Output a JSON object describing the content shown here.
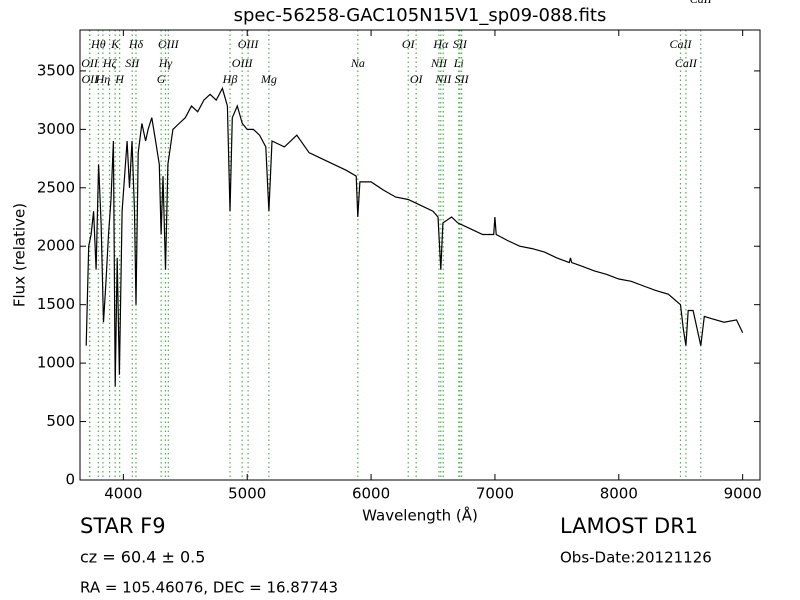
{
  "chart_data": {
    "type": "line",
    "title": "spec-56258-GAC105N15V1_sp09-088.fits",
    "x_label": "Wavelength (Å)",
    "y_label": "Flux (relative)",
    "annotations": [
      "STAR   F9",
      "cz = 60.4 ± 0.5",
      "RA = 105.46076, DEC = 16.87743",
      "LAMOST DR1",
      "Obs-Date:20121126"
    ],
    "xlim": [
      3650,
      9140
    ],
    "ylim": [
      0,
      3850
    ],
    "xticks": [
      4000,
      5000,
      6000,
      7000,
      8000,
      9000
    ],
    "yticks": [
      0,
      500,
      1000,
      1500,
      2000,
      2500,
      3000,
      3500
    ],
    "grid": false,
    "color": "#000000",
    "line_color": "#55aa55",
    "lines": [
      {
        "label": "Hθ",
        "wavelength": 3798
      },
      {
        "label": "K",
        "wavelength": 3934
      },
      {
        "label": "Hδ",
        "wavelength": 4102
      },
      {
        "label": "OIII",
        "wavelength": 4363
      },
      {
        "label": "OIII",
        "wavelength": 5007
      },
      {
        "label": "OI",
        "wavelength": 6300
      },
      {
        "label": "Hα",
        "wavelength": 6563
      },
      {
        "label": "SII",
        "wavelength": 6717
      },
      {
        "label": "CaII",
        "wavelength": 8498
      },
      {
        "label": "OII",
        "wavelength": 3727
      },
      {
        "label": "Hζ",
        "wavelength": 3889
      },
      {
        "label": "SII",
        "wavelength": 4072
      },
      {
        "label": "Hγ",
        "wavelength": 4340
      },
      {
        "label": "OIII",
        "wavelength": 4959
      },
      {
        "label": "Na",
        "wavelength": 5893
      },
      {
        "label": "NII",
        "wavelength": 6548
      },
      {
        "label": "Li",
        "wavelength": 6708
      },
      {
        "label": "CaII",
        "wavelength": 8542
      },
      {
        "label": "OII",
        "wavelength": 3729
      },
      {
        "label": "Hη",
        "wavelength": 3835
      },
      {
        "label": "H",
        "wavelength": 3970
      },
      {
        "label": "G",
        "wavelength": 4305
      },
      {
        "label": "Hβ",
        "wavelength": 4861
      },
      {
        "label": "Mg",
        "wavelength": 5175
      },
      {
        "label": "OI",
        "wavelength": 6364
      },
      {
        "label": "NII",
        "wavelength": 6583
      },
      {
        "label": "SII",
        "wavelength": 6731
      },
      {
        "label": "CaII",
        "wavelength": 8662
      }
    ],
    "x": [
      3700,
      3720,
      3740,
      3760,
      3780,
      3800,
      3820,
      3840,
      3860,
      3880,
      3900,
      3920,
      3934,
      3950,
      3968,
      3990,
      4010,
      4030,
      4050,
      4070,
      4090,
      4102,
      4120,
      4150,
      4180,
      4200,
      4230,
      4260,
      4290,
      4305,
      4320,
      4340,
      4360,
      4400,
      4450,
      4500,
      4550,
      4600,
      4650,
      4700,
      4750,
      4800,
      4840,
      4861,
      4880,
      4920,
      4960,
      5000,
      5050,
      5100,
      5150,
      5175,
      5200,
      5300,
      5400,
      5500,
      5600,
      5700,
      5800,
      5880,
      5893,
      5910,
      6000,
      6100,
      6200,
      6300,
      6400,
      6500,
      6540,
      6563,
      6580,
      6650,
      6700,
      6800,
      6900,
      6990,
      7000,
      7010,
      7100,
      7200,
      7300,
      7400,
      7500,
      7600,
      7610,
      7620,
      7700,
      7800,
      7900,
      8000,
      8100,
      8200,
      8300,
      8400,
      8498,
      8520,
      8542,
      8560,
      8600,
      8662,
      8690,
      8750,
      8850,
      8950,
      9000
    ],
    "values": [
      1150,
      2000,
      2100,
      2300,
      1800,
      2700,
      2200,
      1350,
      1700,
      2100,
      2400,
      2900,
      800,
      1900,
      900,
      2300,
      2600,
      2900,
      2500,
      2900,
      2300,
      1500,
      2800,
      3050,
      2900,
      3000,
      3100,
      2900,
      2700,
      2100,
      2600,
      1800,
      2700,
      3000,
      3050,
      3100,
      3200,
      3150,
      3250,
      3300,
      3250,
      3350,
      3200,
      2300,
      3100,
      3200,
      3050,
      3000,
      3000,
      2950,
      2850,
      2300,
      2900,
      2850,
      2950,
      2800,
      2750,
      2700,
      2650,
      2600,
      2250,
      2550,
      2550,
      2480,
      2420,
      2400,
      2350,
      2300,
      2250,
      1800,
      2200,
      2250,
      2200,
      2150,
      2100,
      2100,
      2250,
      2100,
      2050,
      2000,
      1980,
      1950,
      1900,
      1860,
      1900,
      1860,
      1830,
      1790,
      1760,
      1720,
      1700,
      1660,
      1620,
      1590,
      1500,
      1300,
      1150,
      1450,
      1450,
      1150,
      1400,
      1380,
      1350,
      1370,
      1260
    ]
  }
}
